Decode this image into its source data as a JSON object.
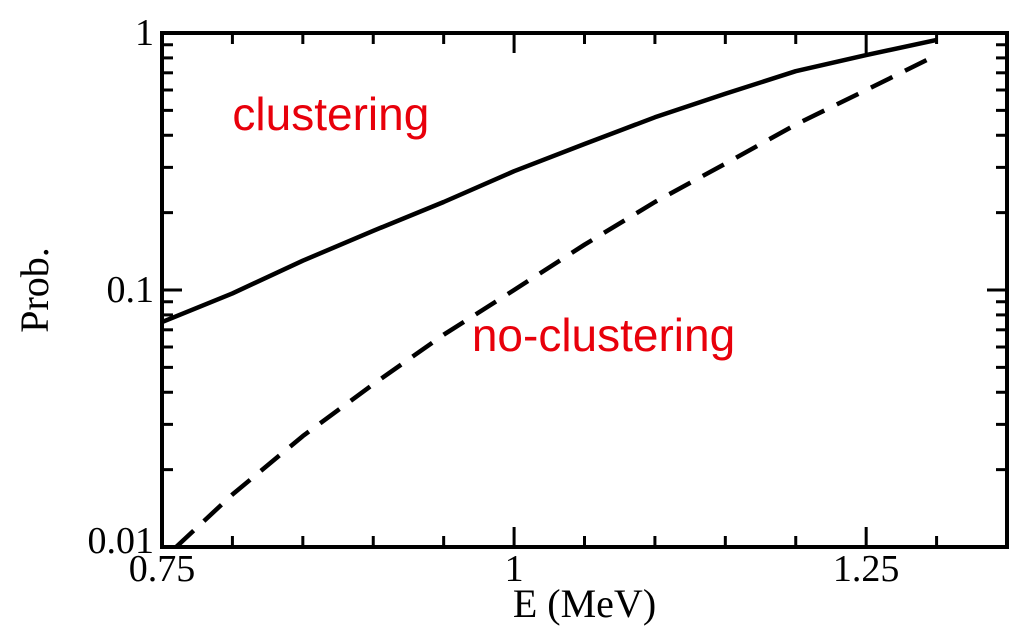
{
  "chart_data": {
    "type": "line",
    "xlabel": "E (MeV)",
    "ylabel": "Prob.",
    "xlim": [
      0.75,
      1.35
    ],
    "ylim": [
      0.01,
      1
    ],
    "yscale": "log",
    "grid": false,
    "x_ticks": [
      {
        "value": 0.75,
        "label": "0.75"
      },
      {
        "value": 1.0,
        "label": "1"
      },
      {
        "value": 1.25,
        "label": "1.25"
      }
    ],
    "y_ticks": [
      {
        "value": 0.01,
        "label": "0.01"
      },
      {
        "value": 0.1,
        "label": "0.1"
      },
      {
        "value": 1,
        "label": "1"
      }
    ],
    "series": [
      {
        "style": "solid",
        "color": "#000000",
        "x": [
          0.75,
          0.8,
          0.85,
          0.9,
          0.95,
          1.0,
          1.05,
          1.1,
          1.15,
          1.2,
          1.25,
          1.3
        ],
        "y": [
          0.075,
          0.097,
          0.13,
          0.17,
          0.22,
          0.29,
          0.37,
          0.47,
          0.58,
          0.71,
          0.82,
          0.94
        ]
      },
      {
        "style": "dashed",
        "color": "#000000",
        "x": [
          0.76,
          0.8,
          0.85,
          0.9,
          0.95,
          1.0,
          1.05,
          1.1,
          1.15,
          1.2,
          1.25,
          1.3
        ],
        "y": [
          0.01,
          0.016,
          0.027,
          0.043,
          0.067,
          0.1,
          0.15,
          0.22,
          0.31,
          0.44,
          0.6,
          0.82
        ]
      }
    ],
    "annotations": [
      {
        "text": "clustering",
        "x": 0.8,
        "y": 0.42,
        "color": "#e8000b"
      },
      {
        "text": "no-clustering",
        "x": 0.97,
        "y": 0.058,
        "color": "#e8000b"
      }
    ]
  }
}
